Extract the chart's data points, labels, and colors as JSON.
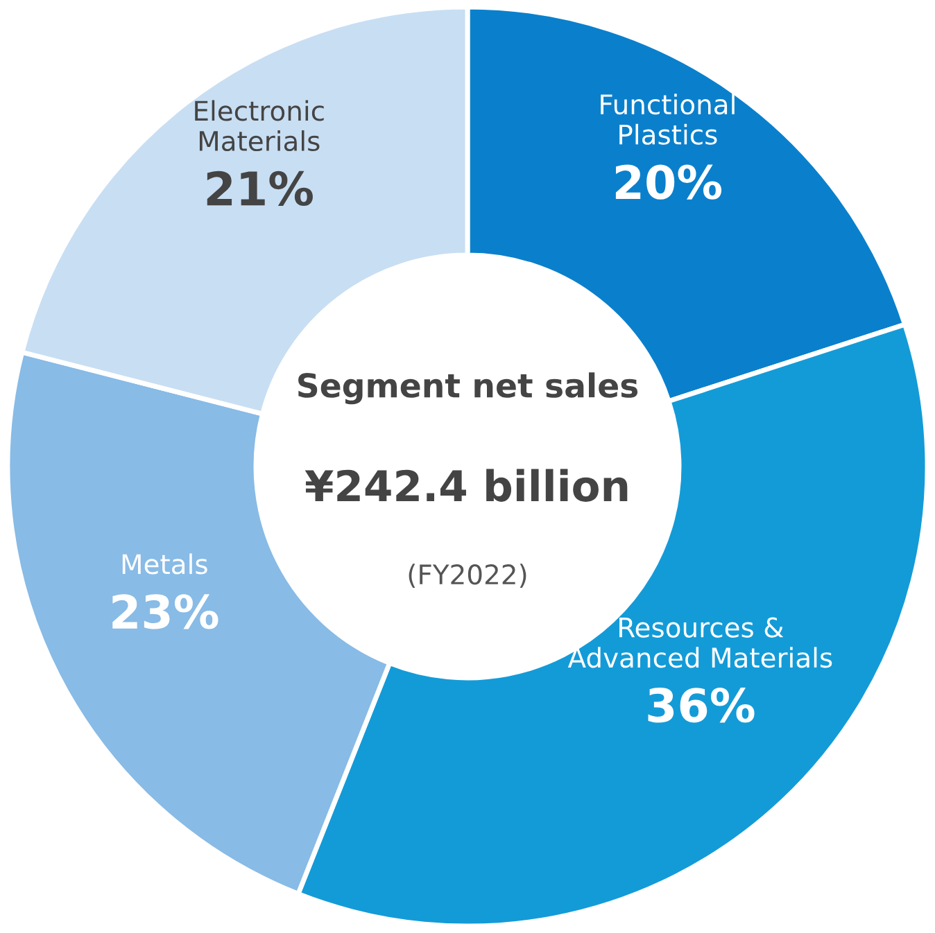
{
  "chart_data": {
    "type": "donut",
    "title": "Segment net sales",
    "categories": [
      "Functional\nPlastics",
      "Resources &\nAdvanced Materials",
      "Metals",
      "Electronic\nMaterials"
    ],
    "values": [
      20,
      36,
      23,
      21
    ],
    "value_labels": [
      "20%",
      "36%",
      "23%",
      "21%"
    ],
    "colors": [
      "#0a80cc",
      "#139bd8",
      "#88bbe6",
      "#c8def3"
    ],
    "annotations": [
      "¥242.4 billion",
      "(FY2022)"
    ]
  }
}
